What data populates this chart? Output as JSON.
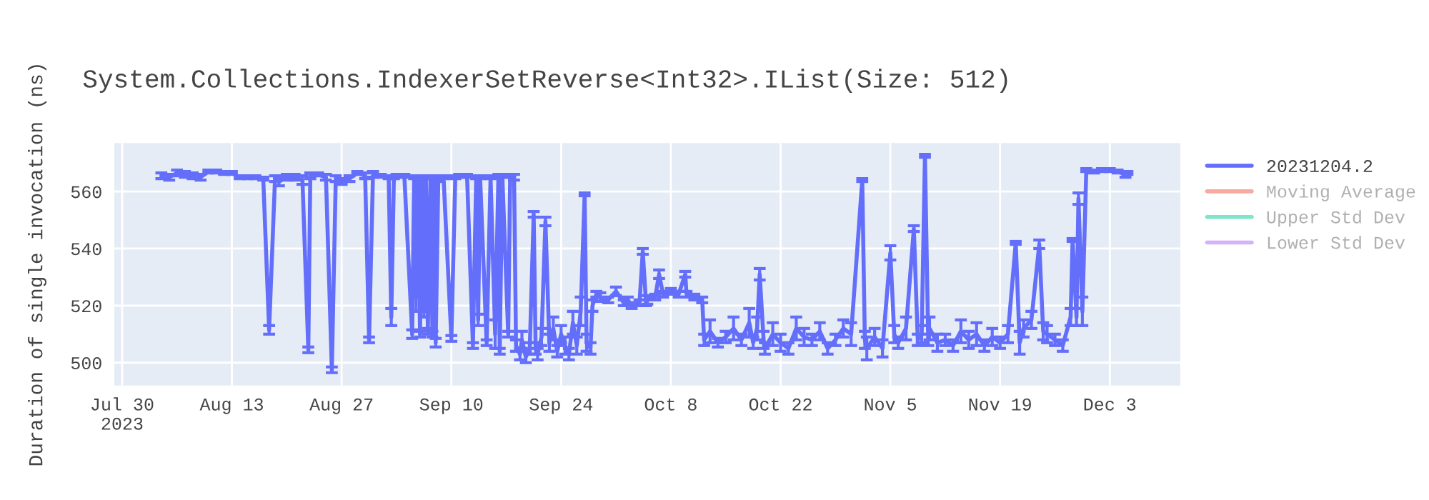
{
  "chart_data": {
    "type": "line",
    "title": "System.Collections.IndexerSetReverse<Int32>.IList(Size: 512)",
    "ylabel": "Duration of single invocation (ns)",
    "x": [
      "2023-08-04",
      "2023-08-05",
      "2023-08-06",
      "2023-08-07",
      "2023-08-08",
      "2023-08-09",
      "2023-08-10",
      "2023-08-11",
      "2023-08-12",
      "2023-08-13",
      "2023-08-14",
      "2023-08-15",
      "2023-08-16",
      "2023-08-17",
      "2023-08-17T18:00",
      "2023-08-18T12:00",
      "2023-08-19",
      "2023-08-20",
      "2023-08-21",
      "2023-08-22",
      "2023-08-22T18:00",
      "2023-08-23",
      "2023-08-24",
      "2023-08-25",
      "2023-08-25T18:00",
      "2023-08-26T06:00",
      "2023-08-27",
      "2023-08-28",
      "2023-08-29",
      "2023-08-30",
      "2023-08-30T12:00",
      "2023-08-31",
      "2023-09-01",
      "2023-09-02",
      "2023-09-02T08:00",
      "2023-09-02T16:00",
      "2023-09-03",
      "2023-09-04",
      "2023-09-05",
      "2023-09-05T06:00",
      "2023-09-05T12:00",
      "2023-09-05T18:00",
      "2023-09-06",
      "2023-09-06T06:00",
      "2023-09-06T12:00",
      "2023-09-06T18:00",
      "2023-09-07",
      "2023-09-07T08:00",
      "2023-09-07T14:00",
      "2023-09-07T20:00",
      "2023-09-08",
      "2023-09-08T08:00",
      "2023-09-09",
      "2023-09-10",
      "2023-09-10T12:00",
      "2023-09-11",
      "2023-09-12",
      "2023-09-12T18:00",
      "2023-09-13T04:00",
      "2023-09-13T10:00",
      "2023-09-13T16:00",
      "2023-09-14T12:00",
      "2023-09-15",
      "2023-09-15T14:00",
      "2023-09-16",
      "2023-09-16T04:00",
      "2023-09-16T12:00",
      "2023-09-17T06:00",
      "2023-09-17T12:00",
      "2023-09-18",
      "2023-09-18T06:00",
      "2023-09-18T18:00",
      "2023-09-19",
      "2023-09-19T12:00",
      "2023-09-20",
      "2023-09-20T12:00",
      "2023-09-20T18:00",
      "2023-09-21",
      "2023-09-21T12:00",
      "2023-09-22",
      "2023-09-22T12:00",
      "2023-09-23",
      "2023-09-23T12:00",
      "2023-09-24",
      "2023-09-24T12:00",
      "2023-09-25",
      "2023-09-25T12:00",
      "2023-09-26",
      "2023-09-26T12:00",
      "2023-09-27",
      "2023-09-27T06:00",
      "2023-09-27T18:00",
      "2023-09-28",
      "2023-09-28T12:00",
      "2023-09-29",
      "2023-09-30",
      "2023-10-01",
      "2023-10-02",
      "2023-10-02T12:00",
      "2023-10-03",
      "2023-10-04",
      "2023-10-04T10:00",
      "2023-10-04T20:00",
      "2023-10-05",
      "2023-10-06",
      "2023-10-06T12:00",
      "2023-10-07",
      "2023-10-08",
      "2023-10-09",
      "2023-10-09T20:00",
      "2023-10-10",
      "2023-10-11",
      "2023-10-12",
      "2023-10-12T06:00",
      "2023-10-13",
      "2023-10-14",
      "2023-10-15",
      "2023-10-16",
      "2023-10-17",
      "2023-10-18",
      "2023-10-18T12:00",
      "2023-10-19",
      "2023-10-19T08:00",
      "2023-10-19T20:00",
      "2023-10-20",
      "2023-10-21",
      "2023-10-22",
      "2023-10-23",
      "2023-10-24",
      "2023-10-25",
      "2023-10-26",
      "2023-10-27",
      "2023-10-28",
      "2023-10-29",
      "2023-10-30",
      "2023-10-31",
      "2023-11-01T10:00",
      "2023-11-01T18:00",
      "2023-11-02",
      "2023-11-03",
      "2023-11-04",
      "2023-11-05",
      "2023-11-05T12:00",
      "2023-11-06",
      "2023-11-07",
      "2023-11-08",
      "2023-11-08T12:00",
      "2023-11-09",
      "2023-11-09T10:00",
      "2023-11-09T20:00",
      "2023-11-10",
      "2023-11-11",
      "2023-11-12",
      "2023-11-13",
      "2023-11-14",
      "2023-11-15",
      "2023-11-16",
      "2023-11-17",
      "2023-11-18",
      "2023-11-19",
      "2023-11-20",
      "2023-11-21",
      "2023-11-21T12:00",
      "2023-11-22",
      "2023-11-23",
      "2023-11-24",
      "2023-11-24T12:00",
      "2023-11-25",
      "2023-11-26",
      "2023-11-27",
      "2023-11-28",
      "2023-11-28T06:00",
      "2023-11-28T18:00",
      "2023-11-29",
      "2023-11-29T12:00",
      "2023-11-30",
      "2023-12-01",
      "2023-12-02",
      "2023-12-03",
      "2023-12-04",
      "2023-12-05",
      "2023-12-05T06:00"
    ],
    "series": [
      {
        "name": "20231204.2",
        "color": "#636efa",
        "values": [
          565.5,
          565,
          566.5,
          566,
          565.5,
          565,
          567,
          567,
          566.5,
          566.5,
          565,
          565,
          565,
          564.5,
          511.5,
          564.5,
          563.5,
          565,
          565,
          564,
          504.5,
          565.5,
          566,
          565,
          497.5,
          564.5,
          563.5,
          564.5,
          566.5,
          565.5,
          508,
          566,
          565.5,
          565,
          516,
          565,
          565.5,
          565.5,
          510,
          565,
          523,
          565,
          510,
          565,
          518,
          565,
          511,
          565,
          510,
          565,
          507,
          564.5,
          565,
          508.5,
          565,
          565.5,
          565.5,
          506,
          565,
          515,
          565,
          507,
          565,
          510,
          565.5,
          504,
          565.5,
          510,
          565.5,
          565,
          506,
          503,
          508,
          502,
          505,
          552,
          505,
          503,
          509,
          549.5,
          507,
          512,
          504,
          510,
          506,
          503,
          514,
          506,
          518,
          559,
          507,
          505,
          520,
          524,
          523,
          522,
          525,
          521,
          522,
          520,
          521,
          539,
          521,
          522,
          523,
          531,
          524,
          525,
          524,
          531,
          524,
          523,
          522,
          508,
          511,
          507,
          509,
          512,
          508,
          514,
          507,
          512,
          531,
          508,
          505,
          510,
          507,
          505,
          512,
          509,
          508,
          511,
          505,
          508,
          512,
          510,
          564,
          508,
          505,
          509,
          505,
          538.5,
          510,
          507,
          512,
          547,
          508,
          510,
          572.5,
          508,
          512,
          507,
          508,
          506,
          511,
          508,
          510,
          506,
          509,
          507,
          510,
          542,
          507,
          512,
          515,
          541.5,
          511,
          510,
          508,
          506,
          516,
          543,
          516,
          557.5,
          518,
          567.5,
          567,
          567.5,
          567.5,
          567,
          566,
          566.5
        ],
        "errors": [
          1,
          1,
          1,
          1,
          1,
          1,
          0.5,
          0.5,
          0.5,
          0.5,
          0.5,
          0.5,
          0.5,
          0.5,
          1.5,
          1,
          1.5,
          1,
          1,
          1.5,
          1,
          1,
          0.5,
          1,
          1,
          1,
          1,
          1,
          0.5,
          1,
          1,
          1,
          0.5,
          0.5,
          3,
          0.5,
          0.5,
          0.5,
          1.5,
          0.5,
          5,
          0.5,
          1,
          0.5,
          2,
          0.5,
          1,
          0.5,
          1,
          0.5,
          1.5,
          1,
          0.5,
          1,
          0.5,
          0.5,
          0.5,
          1,
          0.5,
          2,
          0.5,
          1,
          0.5,
          5,
          0.5,
          1,
          0.5,
          1,
          0.5,
          1,
          2,
          2,
          3,
          2,
          2,
          1,
          2,
          2,
          3,
          1.5,
          3,
          4,
          2,
          3,
          3,
          2,
          4,
          3,
          5,
          0.5,
          3,
          2,
          2,
          1,
          1.5,
          1,
          1.5,
          1,
          1,
          1,
          1,
          1,
          1,
          1.5,
          1,
          1.5,
          1,
          1,
          1,
          1,
          1,
          1,
          1,
          2,
          4,
          1.5,
          2,
          4,
          2,
          5,
          2,
          4,
          2,
          3,
          2,
          4,
          3,
          2,
          4,
          3,
          2,
          3,
          2,
          2,
          3,
          4,
          0.5,
          3,
          4,
          3,
          3,
          2.5,
          3,
          2,
          4,
          1,
          2,
          3,
          0.5,
          2,
          4,
          3,
          2,
          2,
          4,
          3,
          4,
          2,
          3,
          2,
          3,
          0.5,
          4,
          3,
          3,
          1.5,
          3,
          3,
          2,
          2,
          3,
          0.5,
          3,
          2,
          5,
          0.5,
          0.5,
          0.5,
          0.5,
          0.5,
          1,
          0.5
        ]
      },
      {
        "name": "Moving Average",
        "color": "#ef553b",
        "values": [
          null,
          null,
          null,
          null,
          null,
          null,
          null,
          null,
          null,
          null,
          null,
          null,
          null,
          null,
          null,
          null,
          null,
          null,
          null,
          null,
          null,
          null,
          null,
          null,
          null,
          null,
          null,
          null,
          null,
          null,
          null,
          null,
          null,
          null,
          null,
          null,
          null,
          null,
          null,
          null,
          null,
          null,
          null,
          null,
          null,
          null,
          null,
          null,
          null,
          null,
          null,
          null,
          null,
          null,
          null,
          null,
          null,
          null,
          null,
          null,
          null,
          null,
          null,
          null,
          null,
          null,
          null,
          null,
          null,
          null,
          null,
          null,
          null,
          null,
          null,
          null,
          null,
          null,
          null,
          null,
          null,
          null,
          null,
          null,
          null,
          null,
          null,
          null,
          null,
          null,
          null,
          null,
          null,
          null,
          null,
          null,
          null,
          null,
          null,
          null,
          null,
          null,
          null,
          null,
          null,
          null,
          null,
          null,
          null,
          null,
          null,
          null,
          null,
          null,
          null,
          null,
          null,
          null,
          null,
          null,
          null,
          null,
          null,
          null,
          null,
          null,
          null,
          null,
          null,
          null,
          null,
          null,
          null,
          null,
          null,
          null,
          null,
          null,
          null,
          null,
          null,
          null,
          null,
          null,
          null,
          null,
          null,
          null,
          null,
          null,
          null,
          null,
          null,
          null,
          null,
          null,
          null,
          null,
          null,
          null,
          null,
          null,
          null,
          null,
          null,
          null,
          null,
          null,
          null,
          null,
          null,
          null,
          null,
          null,
          null,
          null,
          null,
          null,
          null,
          null,
          null,
          null
        ]
      },
      {
        "name": "Upper Std Dev",
        "color": "#00cc96",
        "values": [
          null,
          null,
          null,
          null,
          null,
          null,
          null,
          null,
          null,
          null,
          null,
          null,
          null,
          null,
          null,
          null,
          null,
          null,
          null,
          null,
          null,
          null,
          null,
          null,
          null,
          null,
          null,
          null,
          null,
          null,
          null,
          null,
          null,
          null,
          null,
          null,
          null,
          null,
          null,
          null,
          null,
          null,
          null,
          null,
          null,
          null,
          null,
          null,
          null,
          null,
          null,
          null,
          null,
          null,
          null,
          null,
          null,
          null,
          null,
          null,
          null,
          null,
          null,
          null,
          null,
          null,
          null,
          null,
          null,
          null,
          null,
          null,
          null,
          null,
          null,
          null,
          null,
          null,
          null,
          null,
          null,
          null,
          null,
          null,
          null,
          null,
          null,
          null,
          null,
          null,
          null,
          null,
          null,
          null,
          null,
          null,
          null,
          null,
          null,
          null,
          null,
          null,
          null,
          null,
          null,
          null,
          null,
          null,
          null,
          null,
          null,
          null,
          null,
          null,
          null,
          null,
          null,
          null,
          null,
          null,
          null,
          null,
          null,
          null,
          null,
          null,
          null,
          null,
          null,
          null,
          null,
          null,
          null,
          null,
          null,
          null,
          null,
          null,
          null,
          null,
          null,
          null,
          null,
          null,
          null,
          null,
          null,
          null,
          null,
          null,
          null,
          null,
          null,
          null,
          null,
          null,
          null,
          null,
          null,
          null,
          null,
          null,
          null,
          null,
          null,
          null,
          null,
          null,
          null,
          null,
          null,
          null,
          null,
          null,
          null,
          null,
          null,
          null,
          null,
          null,
          null,
          null
        ]
      },
      {
        "name": "Lower Std Dev",
        "color": "#ab63fa",
        "values": [
          null,
          null,
          null,
          null,
          null,
          null,
          null,
          null,
          null,
          null,
          null,
          null,
          null,
          null,
          null,
          null,
          null,
          null,
          null,
          null,
          null,
          null,
          null,
          null,
          null,
          null,
          null,
          null,
          null,
          null,
          null,
          null,
          null,
          null,
          null,
          null,
          null,
          null,
          null,
          null,
          null,
          null,
          null,
          null,
          null,
          null,
          null,
          null,
          null,
          null,
          null,
          null,
          null,
          null,
          null,
          null,
          null,
          null,
          null,
          null,
          null,
          null,
          null,
          null,
          null,
          null,
          null,
          null,
          null,
          null,
          null,
          null,
          null,
          null,
          null,
          null,
          null,
          null,
          null,
          null,
          null,
          null,
          null,
          null,
          null,
          null,
          null,
          null,
          null,
          null,
          null,
          null,
          null,
          null,
          null,
          null,
          null,
          null,
          null,
          null,
          null,
          null,
          null,
          null,
          null,
          null,
          null,
          null,
          null,
          null,
          null,
          null,
          null,
          null,
          null,
          null,
          null,
          null,
          null,
          null,
          null,
          null,
          null,
          null,
          null,
          null,
          null,
          null,
          null,
          null,
          null,
          null,
          null,
          null,
          null,
          null,
          null,
          null,
          null,
          null,
          null,
          null,
          null,
          null,
          null,
          null,
          null,
          null,
          null,
          null,
          null,
          null,
          null,
          null,
          null,
          null,
          null,
          null,
          null,
          null,
          null,
          null,
          null,
          null,
          null,
          null,
          null,
          null,
          null,
          null,
          null,
          null,
          null,
          null,
          null,
          null,
          null,
          null,
          null,
          null,
          null,
          null
        ]
      }
    ],
    "xlim": [
      "2023-07-29",
      "2023-12-12"
    ],
    "xticks": [
      {
        "value": "2023-07-30",
        "label": "Jul 30\n2023"
      },
      {
        "value": "2023-08-13",
        "label": "Aug 13"
      },
      {
        "value": "2023-08-27",
        "label": "Aug 27"
      },
      {
        "value": "2023-09-10",
        "label": "Sep 10"
      },
      {
        "value": "2023-09-24",
        "label": "Sep 24"
      },
      {
        "value": "2023-10-08",
        "label": "Oct 8"
      },
      {
        "value": "2023-10-22",
        "label": "Oct 22"
      },
      {
        "value": "2023-11-05",
        "label": "Nov 5"
      },
      {
        "value": "2023-11-19",
        "label": "Nov 19"
      },
      {
        "value": "2023-12-03",
        "label": "Dec 3"
      }
    ],
    "ylim": [
      492,
      577
    ],
    "yticks": [
      500,
      520,
      540,
      560
    ],
    "grid": true,
    "legend": "right"
  }
}
